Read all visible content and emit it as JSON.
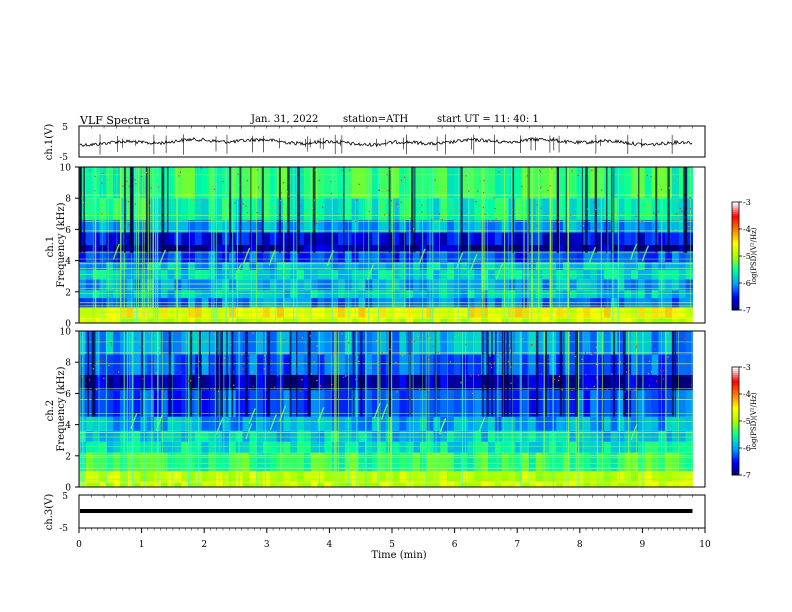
{
  "header": {
    "title": "VLF  Spectra",
    "date": "Jan. 31, 2022",
    "station": "station=ATH",
    "start": "start  UT  =   11: 40: 1"
  },
  "chart_data": [
    {
      "type": "line",
      "panel": "ch1-waveform",
      "ylabel": "ch.1(V)",
      "ylim": [
        -5,
        5
      ],
      "yticks": [
        "5",
        "-5"
      ],
      "xlim": [
        0,
        10
      ]
    },
    {
      "type": "heatmap",
      "panel": "ch1-spectrogram",
      "ylabel": "ch.1\nFrequency  (kHz)",
      "ylim": [
        0,
        10
      ],
      "yticks": [
        "0",
        "2",
        "4",
        "6",
        "8",
        "10"
      ],
      "xlim": [
        0,
        10
      ],
      "data_end_min": 9.8,
      "colorbar": {
        "label": "log(PSD)(V²/Hz)",
        "range": [
          -7,
          -3
        ],
        "ticks": [
          "-3",
          "-4",
          "-5",
          "-6",
          "-7"
        ]
      }
    },
    {
      "type": "heatmap",
      "panel": "ch2-spectrogram",
      "ylabel": "ch.2\nFrequency  (kHz)",
      "ylim": [
        0,
        10
      ],
      "yticks": [
        "0",
        "2",
        "4",
        "6",
        "8",
        "10"
      ],
      "xlim": [
        0,
        10
      ],
      "data_end_min": 9.8,
      "colorbar": {
        "label": "log(PSD)(V²/Hz)",
        "range": [
          -7,
          -3
        ],
        "ticks": [
          "-3",
          "-4",
          "-5",
          "-6",
          "-7"
        ]
      }
    },
    {
      "type": "line",
      "panel": "ch3-waveform",
      "ylabel": "ch.3(V)",
      "ylim": [
        -5,
        5
      ],
      "yticks": [
        "5",
        "-5"
      ],
      "xlim": [
        0,
        10
      ]
    }
  ],
  "xaxis": {
    "label": "Time  (min)",
    "ticks": [
      "0",
      "1",
      "2",
      "3",
      "4",
      "5",
      "6",
      "7",
      "8",
      "9",
      "10"
    ]
  },
  "colors": {
    "colormap": [
      "#000060",
      "#0000ff",
      "#00a0ff",
      "#00ffa0",
      "#a0ff00",
      "#ffff00",
      "#ff8000",
      "#ff0000",
      "#ffffff"
    ]
  }
}
